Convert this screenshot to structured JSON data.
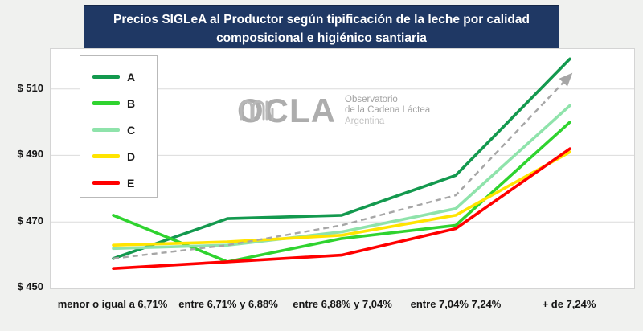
{
  "title": {
    "line1": "Precios SIGLeA al Productor  según tipificación  de la leche por calidad",
    "line2": "composicional  e higiénico santiaria"
  },
  "axis": {
    "y_ticks": [
      "$ 510",
      "$ 490",
      "$ 470",
      "$ 450"
    ]
  },
  "watermark": {
    "name": "OCLA",
    "sub1": "Observatorio",
    "sub2": "de la Cadena Láctea",
    "sub3": "Argentina"
  },
  "chart_data": {
    "type": "line",
    "title": "Precios SIGLeA al Productor según tipificación de la leche por calidad composicional e higiénico santiaria",
    "categories": [
      "menor o igual a 6,71%",
      "entre 6,71% y 6,88%",
      "entre 6,88% y 7,04%",
      "entre 7,04% 7,24%",
      "+ de 7,24%"
    ],
    "series": [
      {
        "name": "A",
        "color": "#13994e",
        "values": [
          459,
          471,
          472,
          484,
          519
        ]
      },
      {
        "name": "B",
        "color": "#2fd32f",
        "values": [
          472,
          458,
          465,
          469,
          500
        ]
      },
      {
        "name": "C",
        "color": "#8fe3ab",
        "values": [
          462,
          463,
          467,
          474,
          505
        ]
      },
      {
        "name": "D",
        "color": "#ffe400",
        "values": [
          463,
          464,
          466,
          472,
          491
        ]
      },
      {
        "name": "E",
        "color": "#ff0000",
        "values": [
          456,
          458,
          460,
          468,
          492
        ]
      }
    ],
    "trend": {
      "name": "trend",
      "color": "#a6a6a6",
      "style": "dashed-arrow",
      "values": [
        459,
        463,
        469,
        478,
        514
      ]
    },
    "ylim": [
      450,
      522
    ],
    "xlabel": "",
    "ylabel": "",
    "grid": "horizontal",
    "legend_position": "top-left"
  }
}
